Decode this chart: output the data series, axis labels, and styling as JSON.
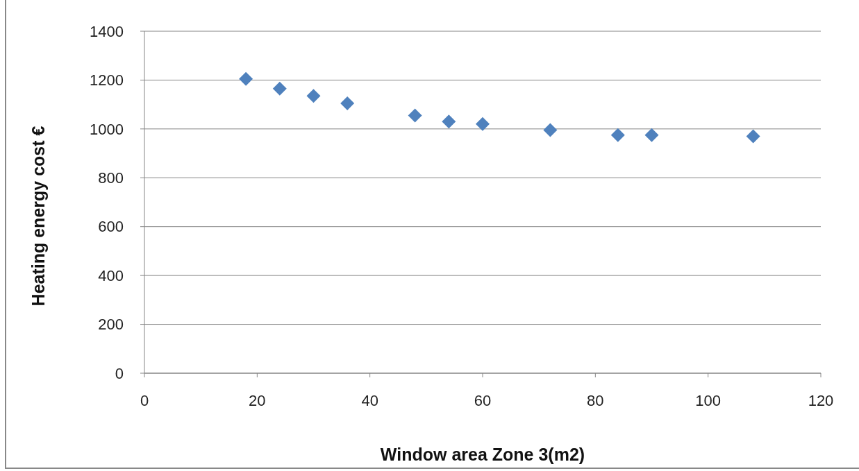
{
  "chart_data": {
    "type": "scatter",
    "xlabel": "Window area Zone 3(m2)",
    "ylabel": "Heating energy cost €",
    "x": [
      18,
      24,
      30,
      36,
      48,
      54,
      60,
      72,
      84,
      90,
      108
    ],
    "series": [
      {
        "color": "#4f81bd",
        "values": [
          1205,
          1165,
          1135,
          1105,
          1055,
          1030,
          1020,
          995,
          975,
          975,
          970
        ]
      }
    ],
    "xlim": [
      0,
      120
    ],
    "xticks": [
      0,
      20,
      40,
      60,
      80,
      100,
      120
    ],
    "ylim": [
      0,
      1400
    ],
    "yticks": [
      0,
      200,
      400,
      600,
      800,
      1000,
      1200,
      1400
    ],
    "grid": "y",
    "marker": "diamond"
  }
}
